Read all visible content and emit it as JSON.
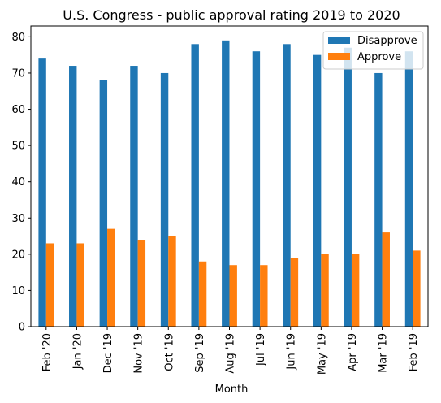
{
  "chart_data": {
    "type": "bar",
    "title": "U.S. Congress - public approval rating 2019 to 2020",
    "xlabel": "Month",
    "ylabel": "",
    "categories": [
      "Feb '20",
      "Jan '20",
      "Dec '19",
      "Nov '19",
      "Oct '19",
      "Sep '19",
      "Aug '19",
      "Jul '19",
      "Jun '19",
      "May '19",
      "Apr '19",
      "Mar '19",
      "Feb '19"
    ],
    "series": [
      {
        "name": "Disapprove",
        "color": "#1f77b4",
        "values": [
          74,
          72,
          68,
          72,
          70,
          78,
          79,
          76,
          78,
          75,
          77,
          70,
          76
        ]
      },
      {
        "name": "Approve",
        "color": "#ff7f0e",
        "values": [
          23,
          23,
          27,
          24,
          25,
          18,
          17,
          17,
          19,
          20,
          20,
          26,
          21
        ]
      }
    ],
    "ylim": [
      0,
      83
    ],
    "yticks": [
      0,
      10,
      20,
      30,
      40,
      50,
      60,
      70,
      80
    ],
    "legend": "top-right",
    "grid": false
  }
}
